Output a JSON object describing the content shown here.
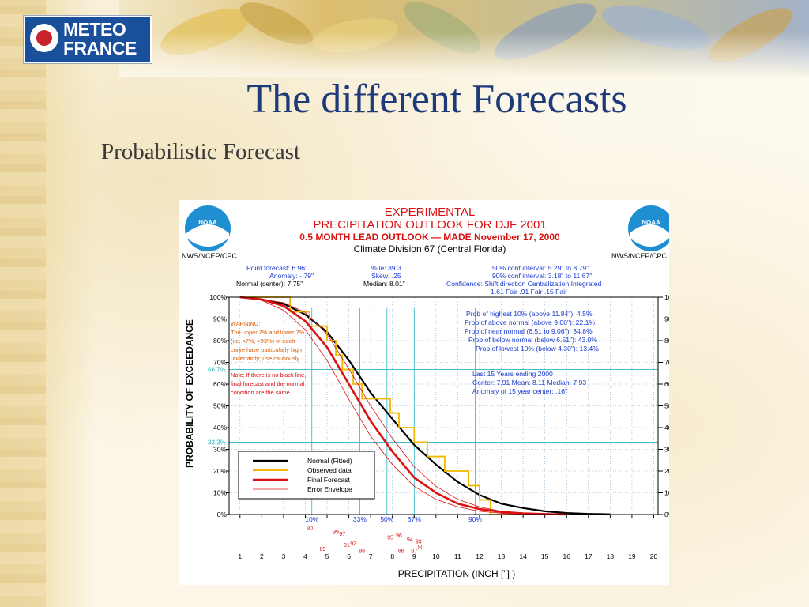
{
  "slide": {
    "logo_text": "METEO\nFRANCE",
    "title": "The different Forecasts",
    "subtitle": "Probabilistic Forecast"
  },
  "chart_data": {
    "type": "line",
    "header": {
      "line1": "EXPERIMENTAL",
      "line2": "PRECIPITATION  OUTLOOK  FOR  DJF  2001",
      "line3": "0.5 MONTH LEAD OUTLOOK   —  MADE November 17, 2000",
      "line4": "Climate Division 67 (Central Florida)",
      "left_agency": "NWS/NCEP/CPC",
      "right_agency": "NWS/NCEP/CPC",
      "noaa_label": "NOAA"
    },
    "xlabel": "PRECIPITATION  (INCH  [\"]  )",
    "ylabel": "PROBABILITY  OF  EXCEEDANCE",
    "xlim": [
      0.5,
      20.2
    ],
    "ylim": [
      0,
      100
    ],
    "x_ticks": [
      "1",
      "2",
      "3",
      "4",
      "5",
      "6",
      "7",
      "8",
      "9",
      "10",
      "11",
      "12",
      "13",
      "14",
      "15",
      "16",
      "17",
      "18",
      "19",
      "20"
    ],
    "y_ticks_left": [
      "0%",
      "10%",
      "20%",
      "30%",
      "40%",
      "50%",
      "60%",
      "70%",
      "80%",
      "90%",
      "100%"
    ],
    "y_ticks_right": [
      "0%",
      "10%",
      "20%",
      "30%",
      "40%",
      "50%",
      "60%",
      "70%",
      "80%",
      "90%",
      "100%"
    ],
    "ref_lines": {
      "upper_label": "66.7%",
      "lower_label": "33.3%",
      "upper": 66.7,
      "lower": 33.3
    },
    "info": {
      "left": [
        "Point forecast: 6.96\"",
        "Anomaly: -.79\"",
        "Normal (center): 7.75\""
      ],
      "mid": [
        "%ile:  39.3",
        "Skew:   .25",
        "Median: 8.01\""
      ],
      "right": [
        "50% conf interval: 5.29\" to 8.79\"",
        "90% conf interval: 3.18\" to 11.67\"",
        "Confidence: Shift direction   Centralization   Integrated",
        "1.61 Fair        .91 Fair       .15 Fair"
      ]
    },
    "probs": [
      "Prob of highest 10% (above 11.84\"): 4.5%",
      "Prob of above normal (above 9.06\"): 22.1%",
      "Prob of near normal (6.51 to 9.06\"): 34.8%",
      "Prob of below normal (below 6.51\"): 43.0%",
      "Prob of lowest 10% (below 4.30\"): 13.4%"
    ],
    "last15": [
      "Last 15 Years ending 2000",
      "Center: 7.91  Mean: 8.11  Median: 7.93",
      "Anomaly of 15 year center:  .16\""
    ],
    "warning": [
      "WARNING:",
      "The upper 7% and lower 7%",
      "(i.e. <7%, >93%) of each",
      "curve have particularly high",
      "uncertainty; use cautiously."
    ],
    "note": [
      "Note: If there is no black line,",
      "final forecast and the normal",
      "condition are the same"
    ],
    "percentile_labels": [
      {
        "label": "10%",
        "x": 4.3
      },
      {
        "label": "33%",
        "x": 6.5
      },
      {
        "label": "50%",
        "x": 7.75
      },
      {
        "label": "67%",
        "x": 9.0
      },
      {
        "label": "90%",
        "x": 11.8
      }
    ],
    "year_marks": [
      {
        "label": "90",
        "x": 4.2,
        "y": -4
      },
      {
        "label": "89",
        "x": 4.8,
        "y": -15
      },
      {
        "label": "99",
        "x": 5.4,
        "y": -6
      },
      {
        "label": "97",
        "x": 5.7,
        "y": -7
      },
      {
        "label": "91",
        "x": 5.9,
        "y": -13
      },
      {
        "label": "92",
        "x": 6.2,
        "y": -12
      },
      {
        "label": "88",
        "x": 6.6,
        "y": -16
      },
      {
        "label": "95",
        "x": 7.9,
        "y": -9
      },
      {
        "label": "96",
        "x": 8.3,
        "y": -8
      },
      {
        "label": "86",
        "x": 8.4,
        "y": -16
      },
      {
        "label": "94",
        "x": 8.8,
        "y": -10
      },
      {
        "label": "93",
        "x": 9.2,
        "y": -11
      },
      {
        "label": "87",
        "x": 9.0,
        "y": -16
      },
      {
        "label": "90",
        "x": 9.3,
        "y": -14
      }
    ],
    "legend": [
      {
        "name": "Normal (Fitted)",
        "color": "#000000",
        "width": 2.2
      },
      {
        "name": "Observed data",
        "color": "#f2b800",
        "width": 2
      },
      {
        "name": "Final Forecast",
        "color": "#dd1111",
        "width": 2.6
      },
      {
        "name": "Error Envelope",
        "color": "#dd1111",
        "width": 0.8
      }
    ],
    "series": [
      {
        "name": "Normal (Fitted)",
        "color": "#000000",
        "x": [
          1,
          2,
          3,
          4,
          5,
          6,
          7,
          8,
          9,
          10,
          11,
          12,
          13,
          14,
          15,
          16,
          17,
          18
        ],
        "y": [
          100,
          99,
          97,
          92,
          84,
          71,
          56,
          44,
          32,
          23,
          15,
          9,
          5,
          3,
          1.5,
          0.7,
          0.3,
          0.1
        ]
      },
      {
        "name": "Observed data",
        "color": "#f2b800",
        "step": true,
        "x": [
          1,
          3.3,
          3.6,
          4.2,
          4.6,
          5.0,
          5.4,
          5.7,
          6.2,
          6.6,
          7.3,
          7.9,
          8.3,
          8.4,
          9.0,
          9.3,
          9.6,
          10.4,
          11.5,
          12.0,
          12.5,
          13.5
        ],
        "y": [
          100,
          93.3,
          93.3,
          86.7,
          86.7,
          80,
          73.3,
          66.7,
          60,
          53.3,
          53.3,
          46.7,
          40,
          40,
          33.3,
          33.3,
          26.7,
          20,
          13.3,
          6.7,
          0,
          0
        ]
      },
      {
        "name": "Final Forecast",
        "color": "#dd1111",
        "x": [
          1,
          2,
          3,
          4,
          5,
          6,
          7,
          8,
          9,
          10,
          11,
          12,
          13,
          14,
          15,
          16
        ],
        "y": [
          100,
          99,
          96,
          89,
          77,
          60,
          43,
          29,
          17,
          10,
          5,
          2.5,
          1.2,
          0.5,
          0.2,
          0
        ]
      },
      {
        "name": "Error Envelope",
        "color": "#dd1111",
        "x": [
          1,
          2,
          3,
          4,
          5,
          6,
          7,
          8,
          9,
          10,
          11,
          12,
          13,
          14,
          15
        ],
        "y": [
          100,
          99,
          97.5,
          93,
          83,
          67,
          50,
          35,
          22,
          13,
          7,
          3.5,
          1.5,
          0.6,
          0.2
        ]
      },
      {
        "name": "Error Envelope",
        "color": "#dd1111",
        "x": [
          1,
          2,
          3,
          4,
          5,
          6,
          7,
          8,
          9,
          10,
          11,
          12,
          13,
          14
        ],
        "y": [
          100,
          98.5,
          94,
          85,
          71,
          53,
          36,
          23,
          13,
          7,
          3.5,
          1.5,
          0.6,
          0.2
        ]
      }
    ]
  }
}
